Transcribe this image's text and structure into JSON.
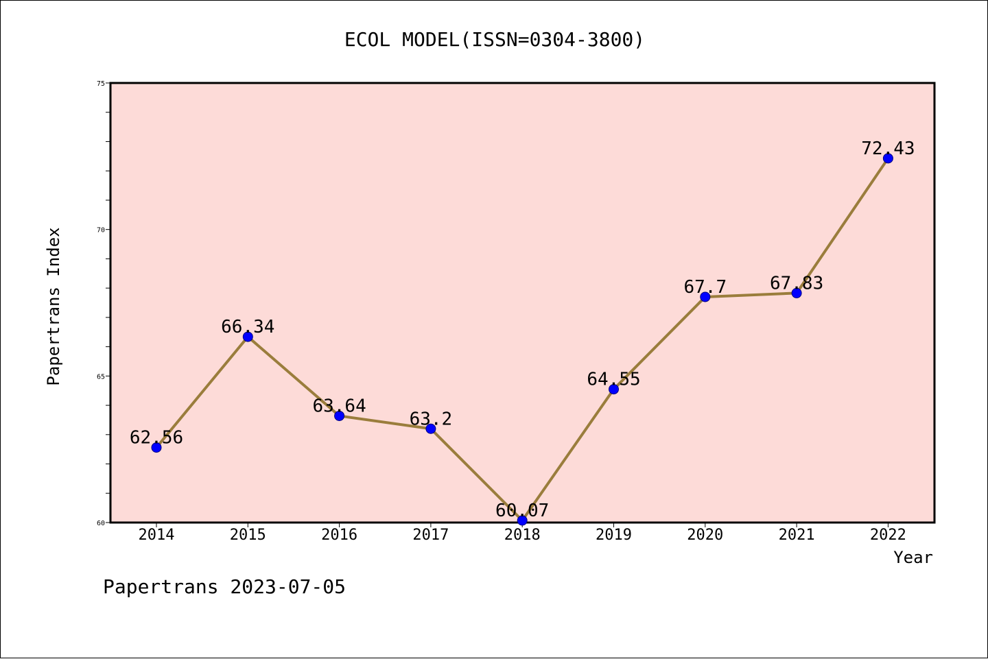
{
  "chart_data": {
    "type": "line",
    "title": "ECOL MODEL(ISSN=0304-3800)",
    "xlabel": "Year",
    "ylabel": "Papertrans Index",
    "categories": [
      "2014",
      "2015",
      "2016",
      "2017",
      "2018",
      "2019",
      "2020",
      "2021",
      "2022"
    ],
    "values": [
      62.56,
      66.34,
      63.64,
      63.2,
      60.07,
      64.55,
      67.7,
      67.83,
      72.43
    ],
    "data_labels": [
      "62.56",
      "66.34",
      "63.64",
      "63.2",
      "60.07",
      "64.55",
      "67.7",
      "67.83",
      "72.43"
    ],
    "ylim": [
      60,
      75
    ],
    "yticks": [
      60,
      65,
      70,
      75
    ],
    "yticks_minor_step": 1,
    "grid": false,
    "legend": "none",
    "colors": {
      "plot_background": "#fddbd8",
      "line": "#9a7d3c",
      "marker": "#0000ff",
      "axis": "#000000"
    }
  },
  "footer": "Papertrans 2023-07-05"
}
